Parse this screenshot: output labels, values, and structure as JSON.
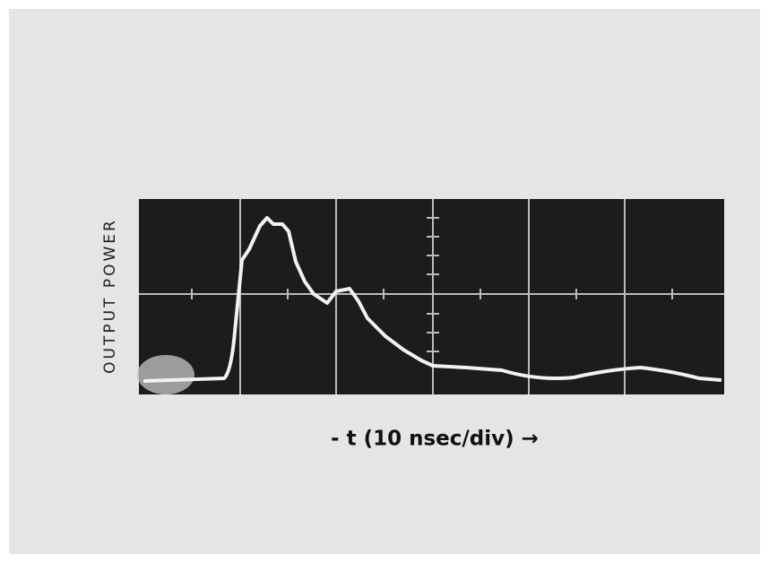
{
  "figure": {
    "y_label": "OUTPUT POWER",
    "x_label": "- t (10 nsec/div) →"
  }
}
